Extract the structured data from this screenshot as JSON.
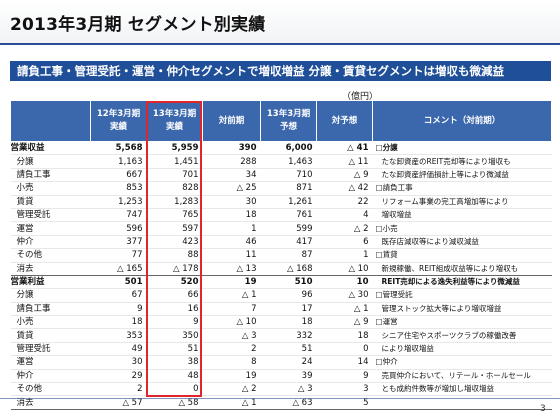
{
  "page": {
    "title": "2013年3月期 セグメント別実績",
    "banner": "請負工事・管理受託・運営・仲介セグメントで増収増益 分譲・賃貸セグメントは増収も微減益",
    "unit": "（億円）",
    "page_number": "3"
  },
  "table": {
    "headers": {
      "label": "",
      "fy12": "12年3月期\n実績",
      "fy13": "13年3月期\n実績",
      "yoy": "対前期",
      "fy14": "13年3月期\n予想",
      "vs_plan": "対予想",
      "comment": "コメント（対前期）"
    },
    "rows": [
      {
        "label": "営業収益",
        "fy12": "5,568",
        "fy13": "5,959",
        "yoy": "390",
        "fy14": "6,000",
        "vs_plan": "△ 41",
        "comment": "□分譲",
        "head": true
      },
      {
        "label": "分譲",
        "fy12": "1,163",
        "fy13": "1,451",
        "yoy": "288",
        "fy14": "1,463",
        "vs_plan": "△ 11",
        "comment": "たな卸資産のREIT売却等により増収も",
        "sub": true
      },
      {
        "label": "請負工事",
        "fy12": "667",
        "fy13": "701",
        "yoy": "34",
        "fy14": "710",
        "vs_plan": "△ 9",
        "comment": "たな卸資産評価損計上等により微減益",
        "sub": true
      },
      {
        "label": "小売",
        "fy12": "853",
        "fy13": "828",
        "yoy": "△ 25",
        "fy14": "871",
        "vs_plan": "△ 42",
        "comment": "□請負工事"
      },
      {
        "label": "賃貸",
        "fy12": "1,253",
        "fy13": "1,283",
        "yoy": "30",
        "fy14": "1,261",
        "vs_plan": "22",
        "comment": "リフォーム事業の完工高増加等により",
        "sub": true
      },
      {
        "label": "管理受託",
        "fy12": "747",
        "fy13": "765",
        "yoy": "18",
        "fy14": "761",
        "vs_plan": "4",
        "comment": "増収増益",
        "sub": true
      },
      {
        "label": "運営",
        "fy12": "596",
        "fy13": "597",
        "yoy": "1",
        "fy14": "599",
        "vs_plan": "△ 2",
        "comment": "□小売"
      },
      {
        "label": "仲介",
        "fy12": "377",
        "fy13": "423",
        "yoy": "46",
        "fy14": "417",
        "vs_plan": "6",
        "comment": "既存店減収等により減収減益",
        "sub": true
      },
      {
        "label": "その他",
        "fy12": "77",
        "fy13": "88",
        "yoy": "11",
        "fy14": "87",
        "vs_plan": "1",
        "comment": "□賃貸"
      },
      {
        "label": "消去",
        "fy12": "△ 165",
        "fy13": "△ 178",
        "yoy": "△ 13",
        "fy14": "△ 168",
        "vs_plan": "△ 10",
        "comment": "新規稼働、REIT組成収益等により増収も",
        "sub": true,
        "total": true
      },
      {
        "label": "営業利益",
        "fy12": "501",
        "fy13": "520",
        "yoy": "19",
        "fy14": "510",
        "vs_plan": "10",
        "comment": "REIT売却による逸失利益等により微減益",
        "head": true,
        "section": true,
        "sub_comment": true
      },
      {
        "label": "分譲",
        "fy12": "67",
        "fy13": "66",
        "yoy": "△ 1",
        "fy14": "96",
        "vs_plan": "△ 30",
        "comment": "□管理受託"
      },
      {
        "label": "請負工事",
        "fy12": "9",
        "fy13": "16",
        "yoy": "7",
        "fy14": "17",
        "vs_plan": "△ 1",
        "comment": "管理ストック拡大等により増収増益",
        "sub": true
      },
      {
        "label": "小売",
        "fy12": "18",
        "fy13": "9",
        "yoy": "△ 10",
        "fy14": "18",
        "vs_plan": "△ 9",
        "comment": "□運営"
      },
      {
        "label": "賃貸",
        "fy12": "353",
        "fy13": "350",
        "yoy": "△ 3",
        "fy14": "332",
        "vs_plan": "18",
        "comment": "シニア住宅やスポーツクラブの稼働改善",
        "sub": true
      },
      {
        "label": "管理受託",
        "fy12": "49",
        "fy13": "51",
        "yoy": "2",
        "fy14": "51",
        "vs_plan": "0",
        "comment": "により増収増益",
        "sub": true
      },
      {
        "label": "運営",
        "fy12": "30",
        "fy13": "38",
        "yoy": "8",
        "fy14": "24",
        "vs_plan": "14",
        "comment": "□仲介"
      },
      {
        "label": "仲介",
        "fy12": "29",
        "fy13": "48",
        "yoy": "19",
        "fy14": "39",
        "vs_plan": "9",
        "comment": "売買仲介において、リテール・ホールセール",
        "sub": true
      },
      {
        "label": "その他",
        "fy12": "2",
        "fy13": "0",
        "yoy": "△ 2",
        "fy14": "△ 3",
        "vs_plan": "3",
        "comment": "とも成約件数等が増加し増収増益",
        "sub": true
      },
      {
        "label": "消去",
        "fy12": "△ 57",
        "fy13": "△ 58",
        "yoy": "△ 1",
        "fy14": "△ 63",
        "vs_plan": "5",
        "comment": "",
        "total": true
      }
    ]
  },
  "colors": {
    "header_bg": "#3b67ad",
    "banner_bg": "#1f4f98",
    "highlight": "#e0262a"
  }
}
